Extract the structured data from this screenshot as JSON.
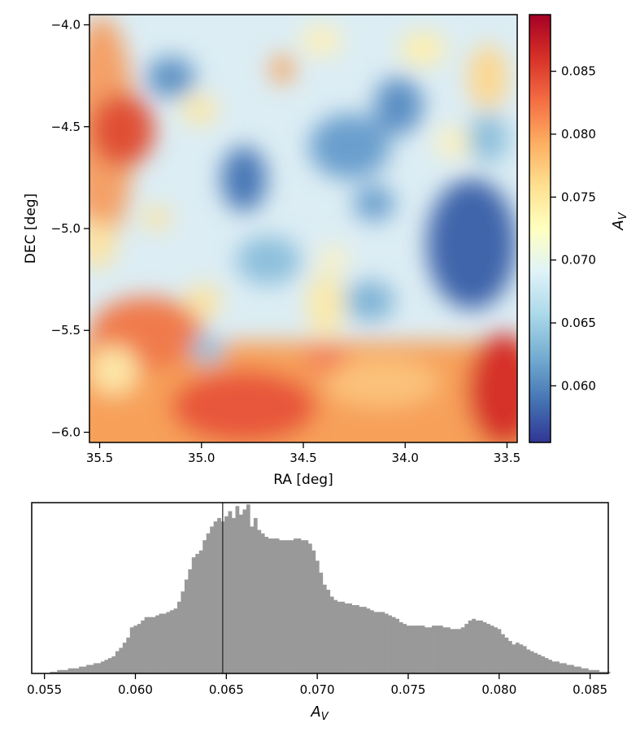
{
  "chart_data": [
    {
      "type": "heatmap",
      "xlabel": "RA [deg]",
      "ylabel": "DEC [deg]",
      "xlim": [
        35.55,
        33.45
      ],
      "ylim": [
        -6.05,
        -3.95
      ],
      "x_reversed": true,
      "xticks": [
        35.5,
        35.0,
        34.5,
        34.0,
        33.5
      ],
      "xtick_labels": [
        "35.5",
        "35.0",
        "34.5",
        "34.0",
        "33.5"
      ],
      "yticks": [
        -4.0,
        -4.5,
        -5.0,
        -5.5,
        -6.0
      ],
      "ytick_labels": [
        "−4.0",
        "−4.5",
        "−5.0",
        "−5.5",
        "−6.0"
      ],
      "colormap": "RdYlBu_r",
      "colorbar": {
        "label": "A_V",
        "range": [
          0.0555,
          0.0895
        ],
        "ticks": [
          0.06,
          0.065,
          0.07,
          0.075,
          0.08,
          0.085
        ],
        "tick_labels": [
          "0.060",
          "0.065",
          "0.070",
          "0.075",
          "0.080",
          "0.085"
        ]
      },
      "grid": false,
      "features": [
        {
          "region": "bottom band DEC < -5.5",
          "level": "high (~0.080–0.089)"
        },
        {
          "region": "left edge around RA 35.4, DEC -4.6",
          "level": "high (~0.083)"
        },
        {
          "region": "right side around RA 33.6, DEC -5.1",
          "level": "low (~0.057)"
        },
        {
          "region": "centre RA 34.8, DEC -4.7",
          "level": "low (~0.058)"
        }
      ]
    },
    {
      "type": "bar",
      "subtype": "histogram",
      "xlabel": "A_V",
      "ylabel": "",
      "xlim": [
        0.0543,
        0.086
      ],
      "ylim": [
        0,
        1.0
      ],
      "xticks": [
        0.055,
        0.06,
        0.065,
        0.07,
        0.075,
        0.08,
        0.085
      ],
      "xtick_labels": [
        "0.055",
        "0.060",
        "0.065",
        "0.070",
        "0.075",
        "0.080",
        "0.085"
      ],
      "bin_start": 0.0553,
      "bin_width": 0.0002,
      "counts": [
        0.01,
        0.01,
        0.02,
        0.02,
        0.02,
        0.03,
        0.03,
        0.03,
        0.04,
        0.04,
        0.05,
        0.05,
        0.06,
        0.06,
        0.07,
        0.08,
        0.09,
        0.1,
        0.13,
        0.15,
        0.18,
        0.21,
        0.27,
        0.28,
        0.29,
        0.31,
        0.33,
        0.33,
        0.33,
        0.34,
        0.35,
        0.35,
        0.36,
        0.37,
        0.38,
        0.42,
        0.48,
        0.55,
        0.61,
        0.68,
        0.7,
        0.72,
        0.78,
        0.82,
        0.86,
        0.89,
        0.91,
        0.89,
        0.92,
        0.95,
        0.91,
        0.98,
        0.93,
        0.96,
        0.99,
        0.86,
        0.91,
        0.84,
        0.82,
        0.8,
        0.79,
        0.79,
        0.79,
        0.78,
        0.78,
        0.78,
        0.78,
        0.79,
        0.79,
        0.78,
        0.78,
        0.76,
        0.72,
        0.66,
        0.59,
        0.52,
        0.49,
        0.45,
        0.43,
        0.42,
        0.42,
        0.41,
        0.41,
        0.4,
        0.4,
        0.39,
        0.39,
        0.38,
        0.37,
        0.36,
        0.36,
        0.36,
        0.35,
        0.34,
        0.33,
        0.32,
        0.3,
        0.29,
        0.28,
        0.28,
        0.28,
        0.28,
        0.28,
        0.27,
        0.27,
        0.28,
        0.28,
        0.28,
        0.27,
        0.27,
        0.26,
        0.26,
        0.26,
        0.27,
        0.29,
        0.31,
        0.32,
        0.31,
        0.31,
        0.3,
        0.29,
        0.28,
        0.27,
        0.26,
        0.23,
        0.21,
        0.19,
        0.17,
        0.18,
        0.17,
        0.16,
        0.14,
        0.13,
        0.12,
        0.11,
        0.1,
        0.09,
        0.08,
        0.07,
        0.07,
        0.06,
        0.06,
        0.05,
        0.05,
        0.04,
        0.04,
        0.03,
        0.03,
        0.02,
        0.02,
        0.02,
        0.01,
        0.01,
        0.01
      ],
      "vline": 0.0648,
      "bar_color": "#999999"
    }
  ]
}
